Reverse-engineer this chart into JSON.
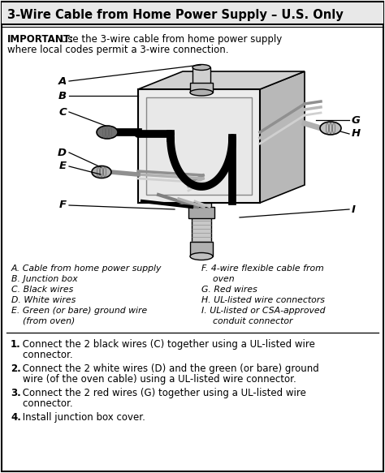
{
  "title": "3-Wire Cable from Home Power Supply – U.S. Only",
  "important_line1": "IMPORTANT:",
  "important_line1_rest": " Use the 3-wire cable from home power supply",
  "important_line2": "where local codes permit a 3-wire connection.",
  "legend_left": [
    "A. Cable from home power supply",
    "B. Junction box",
    "C. Black wires",
    "D. White wires",
    "E. Green (or bare) ground wire",
    "    (from oven)"
  ],
  "legend_right": [
    "F. 4-wire flexible cable from",
    "    oven",
    "G. Red wires",
    "H. UL-listed wire connectors",
    "I. UL-listed or CSA-approved",
    "    conduit connector"
  ],
  "step1_bold": "1.",
  "step1_rest": "  Connect the 2 black wires (C) together using a UL-listed wire",
  "step1_cont": "    connector.",
  "step2_bold": "2.",
  "step2_rest": "  Connect the 2 white wires (D) and the green (or bare) ground",
  "step2_cont": "    wire (of the oven cable) using a UL-listed wire connector.",
  "step3_bold": "3.",
  "step3_rest": "  Connect the 2 red wires (G) together using a UL-listed wire",
  "step3_cont": "    connector.",
  "step4_bold": "4.",
  "step4_rest": "  Install junction box cover.",
  "bg_color": "#ffffff",
  "title_bg": "#e8e8e8",
  "border_color": "#000000",
  "text_color": "#000000",
  "gray1": "#c8c8c8",
  "gray2": "#a8a8a8",
  "gray3": "#e0e0e0",
  "dark_gray": "#606060"
}
